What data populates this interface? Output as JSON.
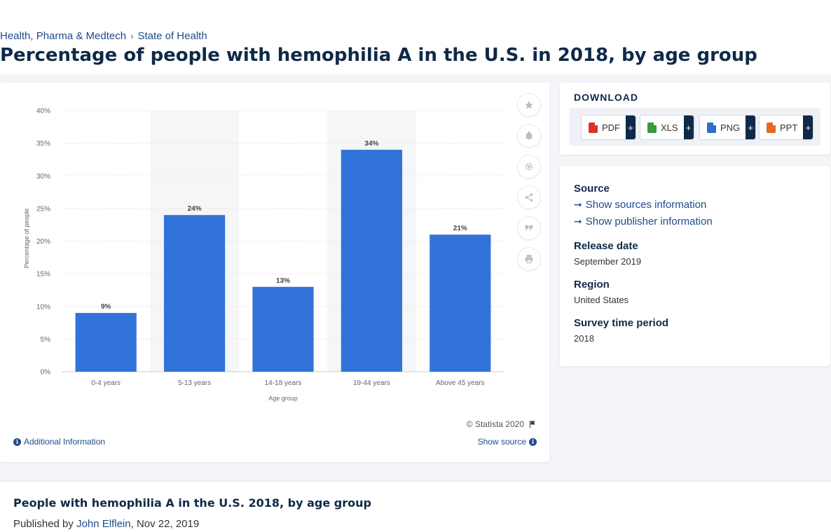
{
  "breadcrumb": {
    "items": [
      "Health, Pharma & Medtech",
      "State of Health"
    ],
    "separator": "›"
  },
  "page_title": "Percentage of people with hemophilia A in the U.S. in 2018, by age group",
  "chart_data": {
    "type": "bar",
    "title": "",
    "categories": [
      "0-4 years",
      "5-13 years",
      "14-18 years",
      "19-44 years",
      "Above 45 years"
    ],
    "values": [
      9,
      24,
      13,
      34,
      21
    ],
    "data_labels": [
      "9%",
      "24%",
      "13%",
      "34%",
      "21%"
    ],
    "xlabel": "Age group",
    "ylabel": "Percentage of people",
    "ylim": [
      0,
      40
    ],
    "yticks": [
      0,
      5,
      10,
      15,
      20,
      25,
      30,
      35,
      40
    ],
    "ytick_labels": [
      "0%",
      "5%",
      "10%",
      "15%",
      "20%",
      "25%",
      "30%",
      "35%",
      "40%"
    ],
    "grid": true,
    "bar_color": "#3273d9"
  },
  "chart_footer": {
    "copyright": "© Statista 2020",
    "additional_info": "Additional Information",
    "show_source": "Show source"
  },
  "toolbar": {
    "icons": [
      "star-icon",
      "bell-icon",
      "gear-icon",
      "share-icon",
      "quote-icon",
      "print-icon"
    ]
  },
  "download": {
    "heading": "DOWNLOAD",
    "buttons": [
      {
        "label": "PDF",
        "plus": "+",
        "color": "#d9342b"
      },
      {
        "label": "XLS",
        "plus": "+",
        "color": "#3a9b3a"
      },
      {
        "label": "PNG",
        "plus": "+",
        "color": "#2f6fc6"
      },
      {
        "label": "PPT",
        "plus": "+",
        "color": "#e36a1e"
      }
    ]
  },
  "meta": {
    "source_label": "Source",
    "show_sources": "Show sources information",
    "show_publisher": "Show publisher information",
    "release_date_label": "Release date",
    "release_date": "September 2019",
    "region_label": "Region",
    "region": "United States",
    "survey_period_label": "Survey time period",
    "survey_period": "2018"
  },
  "article": {
    "title": "People with hemophilia A in the U.S. 2018, by age group",
    "published_prefix": "Published by",
    "author": "John Elflein",
    "date": ", Nov 22, 2019"
  }
}
